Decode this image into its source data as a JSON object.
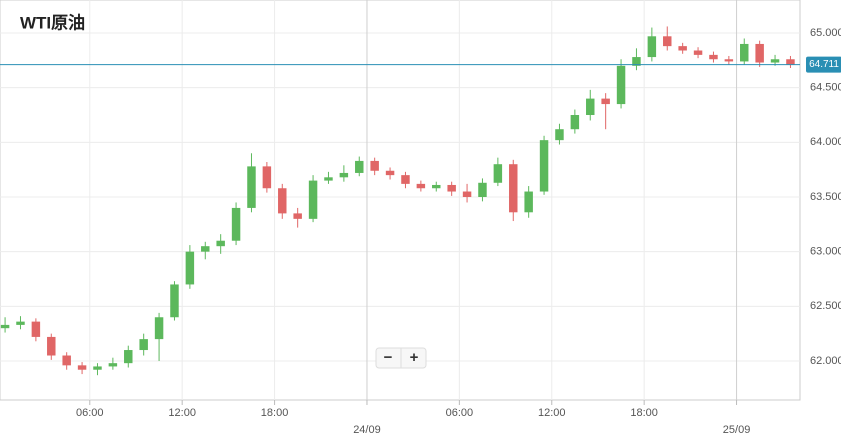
{
  "chart_data": {
    "type": "candlestick",
    "title": "WTI原油",
    "x": [
      -23.5,
      -22.5,
      -21.5,
      -20.5,
      -19.5,
      -18.5,
      -17.5,
      -16.5,
      -15.5,
      -14.5,
      -13.5,
      -12.5,
      -11.5,
      -10.5,
      -9.5,
      -8.5,
      -7.5,
      -6.5,
      -5.5,
      -4.5,
      -3.5,
      -2.5,
      -1.5,
      -0.5,
      0.5,
      1.5,
      2.5,
      3.5,
      4.5,
      5.5,
      6.5,
      7.5,
      8.5,
      9.5,
      10.5,
      11.5,
      12.5,
      13.5,
      14.5,
      15.5,
      16.5,
      17.5,
      18.5,
      19.5,
      20.5,
      21.5,
      22.5,
      23.5,
      24.5,
      25.5,
      26.5,
      27.5
    ],
    "open": [
      62.3,
      62.33,
      62.36,
      62.22,
      62.05,
      61.96,
      61.92,
      61.95,
      61.98,
      62.1,
      62.2,
      62.4,
      62.7,
      63.0,
      63.05,
      63.1,
      63.4,
      63.78,
      63.58,
      63.35,
      63.3,
      63.65,
      63.68,
      63.72,
      63.83,
      63.74,
      63.7,
      63.62,
      63.58,
      63.61,
      63.55,
      63.5,
      63.63,
      63.8,
      63.36,
      63.55,
      64.02,
      64.12,
      64.25,
      64.4,
      64.35,
      64.7,
      64.78,
      64.97,
      64.88,
      64.84,
      64.8,
      64.76,
      64.74,
      64.9,
      64.73,
      64.76
    ],
    "high": [
      62.4,
      62.41,
      62.39,
      62.25,
      62.08,
      61.99,
      61.98,
      62.03,
      62.14,
      62.25,
      62.44,
      62.73,
      63.06,
      63.09,
      63.16,
      63.45,
      63.9,
      63.82,
      63.62,
      63.4,
      63.7,
      63.73,
      63.79,
      63.87,
      63.86,
      63.77,
      63.73,
      63.65,
      63.64,
      63.64,
      63.62,
      63.67,
      63.86,
      63.84,
      63.6,
      64.06,
      64.17,
      64.3,
      64.48,
      64.45,
      64.76,
      64.86,
      65.05,
      65.06,
      64.91,
      64.87,
      64.83,
      64.79,
      64.95,
      64.93,
      64.8,
      64.79
    ],
    "low": [
      62.26,
      62.29,
      62.18,
      62.01,
      61.92,
      61.88,
      61.87,
      61.92,
      61.94,
      62.05,
      62.0,
      62.37,
      62.66,
      62.93,
      62.98,
      63.06,
      63.36,
      63.54,
      63.3,
      63.22,
      63.27,
      63.62,
      63.64,
      63.69,
      63.7,
      63.66,
      63.58,
      63.55,
      63.55,
      63.51,
      63.45,
      63.46,
      63.6,
      63.28,
      63.31,
      63.52,
      63.98,
      64.08,
      64.2,
      64.12,
      64.31,
      64.66,
      64.74,
      64.84,
      64.81,
      64.77,
      64.73,
      64.71,
      64.71,
      64.69,
      64.7,
      64.68
    ],
    "close": [
      62.33,
      62.36,
      62.22,
      62.05,
      61.96,
      61.92,
      61.95,
      61.98,
      62.1,
      62.2,
      62.4,
      62.7,
      63.0,
      63.05,
      63.1,
      63.4,
      63.78,
      63.58,
      63.35,
      63.3,
      63.65,
      63.68,
      63.72,
      63.83,
      63.74,
      63.7,
      63.62,
      63.58,
      63.61,
      63.55,
      63.5,
      63.63,
      63.8,
      63.36,
      63.55,
      64.02,
      64.12,
      64.25,
      64.4,
      64.35,
      64.7,
      64.78,
      64.97,
      64.88,
      64.84,
      64.8,
      64.76,
      64.74,
      64.9,
      64.73,
      64.76,
      64.71
    ],
    "up_color": "#5cb85c",
    "down_color": "#e06666",
    "xlim": [
      -23.83,
      28.12
    ],
    "ylim": [
      61.643,
      65.302
    ],
    "xticks": [
      {
        "value": -18,
        "label": "06:00"
      },
      {
        "value": -12,
        "label": "12:00"
      },
      {
        "value": -6,
        "label": "18:00"
      },
      {
        "value": 0,
        "label": "24/09"
      },
      {
        "value": 6,
        "label": "06:00"
      },
      {
        "value": 12,
        "label": "12:00"
      },
      {
        "value": 18,
        "label": "18:00"
      },
      {
        "value": 24,
        "label": "25/09"
      }
    ],
    "yticks": [
      {
        "value": 62,
        "label": "62.000"
      },
      {
        "value": 62.5,
        "label": "62.500"
      },
      {
        "value": 63,
        "label": "63.000"
      },
      {
        "value": 63.5,
        "label": "63.500"
      },
      {
        "value": 64,
        "label": "64.000"
      },
      {
        "value": 64.5,
        "label": "64.500"
      },
      {
        "value": 65,
        "label": "65.000"
      }
    ],
    "grid": true,
    "last_price": {
      "value": 64.711,
      "label": "64.711"
    },
    "last_price_color": "#2a8fb4"
  },
  "controls": {
    "zoom_out": "−",
    "zoom_in": "+"
  }
}
